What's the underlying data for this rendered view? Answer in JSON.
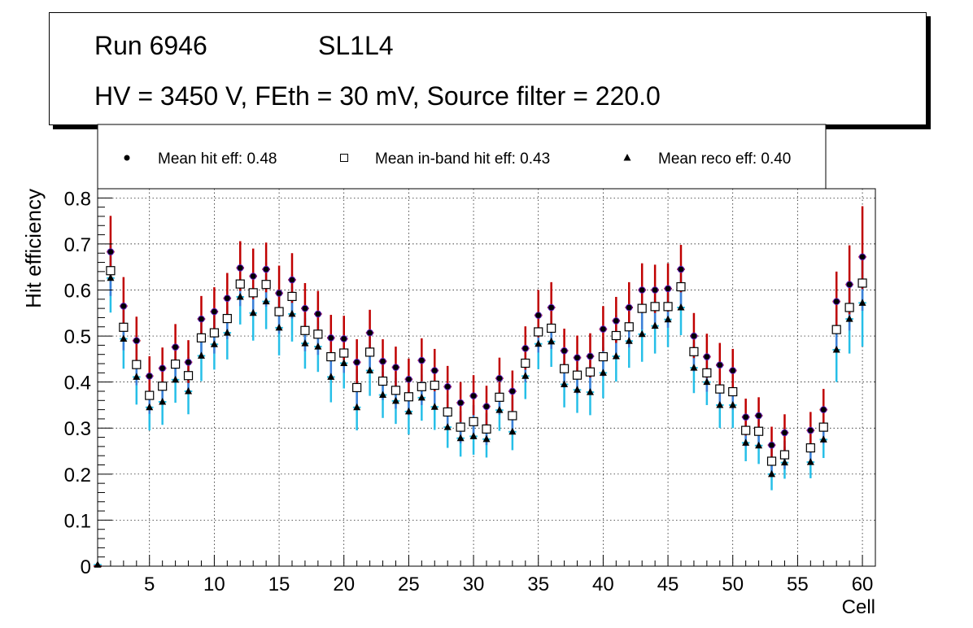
{
  "header": {
    "run": "Run 6946",
    "layer": "SL1L4",
    "settings": "HV = 3450 V, FEth = 30 mV, Source filter = 220.0"
  },
  "colors": {
    "hit_err": "#c00000",
    "hit_marker": "#000000",
    "hit_edge": "#5b1ab3",
    "inband_err": "#3b7fd8",
    "inband_marker": "#ffffff",
    "inband_edge": "#000000",
    "reco_err": "#26bfe8",
    "reco_marker": "#000000",
    "grid": "#000000"
  },
  "chart_data": {
    "type": "scatter",
    "xlabel": "Cell",
    "ylabel": "Hit efficiency",
    "xlim": [
      1,
      61
    ],
    "ylim": [
      0,
      0.82
    ],
    "grid": true,
    "x_ticks": [
      5,
      10,
      15,
      20,
      25,
      30,
      35,
      40,
      45,
      50,
      55,
      60
    ],
    "y_ticks": [
      0,
      0.1,
      0.2,
      0.3,
      0.4,
      0.5,
      0.6,
      0.7,
      0.8
    ],
    "legend": {
      "position": "top",
      "entries": [
        "Mean hit  eff: 0.48",
        "Mean in-band hit eff: 0.43",
        "Mean reco eff: 0.40"
      ]
    },
    "x": [
      1,
      2,
      3,
      4,
      5,
      6,
      7,
      8,
      9,
      10,
      11,
      12,
      13,
      14,
      15,
      16,
      17,
      18,
      19,
      20,
      21,
      22,
      23,
      24,
      25,
      26,
      27,
      28,
      29,
      30,
      31,
      32,
      33,
      34,
      35,
      36,
      37,
      38,
      39,
      40,
      41,
      42,
      43,
      44,
      45,
      46,
      47,
      48,
      49,
      50,
      51,
      52,
      53,
      54,
      55,
      56,
      57,
      58,
      59,
      60
    ],
    "series": [
      {
        "name": "Mean hit  eff: 0.48",
        "marker": "circle",
        "values": [
          0.0,
          0.683,
          0.565,
          0.49,
          0.413,
          0.43,
          0.476,
          0.443,
          0.537,
          0.553,
          0.582,
          0.648,
          0.63,
          0.645,
          0.593,
          0.622,
          0.56,
          0.548,
          0.496,
          0.494,
          0.443,
          0.507,
          0.445,
          0.432,
          0.406,
          0.447,
          0.425,
          0.39,
          0.355,
          0.37,
          0.347,
          0.408,
          0.38,
          0.473,
          0.545,
          0.562,
          0.468,
          0.453,
          0.456,
          0.515,
          0.533,
          0.562,
          0.6,
          0.6,
          0.603,
          0.645,
          0.5,
          0.455,
          0.437,
          0.425,
          0.324,
          0.327,
          0.263,
          0.29,
          null,
          0.295,
          0.34,
          0.575,
          0.612,
          0.672
        ],
        "err_low": [
          0.0,
          0.055,
          0.055,
          0.05,
          0.045,
          0.045,
          0.045,
          0.045,
          0.048,
          0.048,
          0.05,
          0.05,
          0.05,
          0.05,
          0.05,
          0.05,
          0.048,
          0.048,
          0.046,
          0.046,
          0.046,
          0.046,
          0.046,
          0.046,
          0.045,
          0.046,
          0.045,
          0.045,
          0.042,
          0.042,
          0.042,
          0.044,
          0.043,
          0.046,
          0.048,
          0.048,
          0.046,
          0.046,
          0.046,
          0.048,
          0.048,
          0.048,
          0.05,
          0.05,
          0.05,
          0.05,
          0.048,
          0.046,
          0.045,
          0.045,
          0.04,
          0.04,
          0.036,
          0.038,
          null,
          0.038,
          0.042,
          0.06,
          0.065,
          0.07
        ],
        "err_high": [
          0.0,
          0.078,
          0.063,
          0.052,
          0.043,
          0.045,
          0.05,
          0.048,
          0.05,
          0.053,
          0.055,
          0.058,
          0.06,
          0.058,
          0.06,
          0.058,
          0.055,
          0.05,
          0.05,
          0.05,
          0.05,
          0.05,
          0.048,
          0.045,
          0.045,
          0.048,
          0.047,
          0.045,
          0.045,
          0.045,
          0.045,
          0.045,
          0.045,
          0.048,
          0.055,
          0.055,
          0.048,
          0.048,
          0.05,
          0.05,
          0.052,
          0.055,
          0.058,
          0.055,
          0.055,
          0.053,
          0.05,
          0.05,
          0.048,
          0.047,
          0.04,
          0.04,
          0.04,
          0.04,
          null,
          0.04,
          0.045,
          0.065,
          0.085,
          0.11
        ]
      },
      {
        "name": "Mean in-band hit eff: 0.43",
        "marker": "open-square",
        "values": [
          0.0,
          0.642,
          0.519,
          0.438,
          0.371,
          0.391,
          0.439,
          0.414,
          0.496,
          0.507,
          0.538,
          0.613,
          0.594,
          0.612,
          0.553,
          0.586,
          0.512,
          0.504,
          0.455,
          0.463,
          0.388,
          0.465,
          0.402,
          0.382,
          0.368,
          0.39,
          0.393,
          0.335,
          0.302,
          0.314,
          0.298,
          0.367,
          0.327,
          0.441,
          0.509,
          0.517,
          0.429,
          0.415,
          0.422,
          0.455,
          0.501,
          0.52,
          0.56,
          0.564,
          0.564,
          0.607,
          0.466,
          0.42,
          0.385,
          0.379,
          0.295,
          0.293,
          0.228,
          0.242,
          null,
          0.257,
          0.302,
          0.514,
          0.562,
          0.615
        ],
        "err_low": [
          0.0,
          0.055,
          0.05,
          0.045,
          0.04,
          0.04,
          0.04,
          0.04,
          0.045,
          0.045,
          0.045,
          0.048,
          0.048,
          0.048,
          0.048,
          0.048,
          0.045,
          0.045,
          0.043,
          0.043,
          0.04,
          0.043,
          0.041,
          0.04,
          0.04,
          0.04,
          0.04,
          0.038,
          0.035,
          0.036,
          0.035,
          0.038,
          0.036,
          0.041,
          0.045,
          0.045,
          0.041,
          0.041,
          0.041,
          0.043,
          0.045,
          0.045,
          0.046,
          0.046,
          0.046,
          0.048,
          0.043,
          0.041,
          0.04,
          0.039,
          0.035,
          0.035,
          0.03,
          0.031,
          null,
          0.032,
          0.036,
          0.05,
          0.05,
          0.06
        ],
        "err_high": [
          0.0,
          0.055,
          0.05,
          0.045,
          0.04,
          0.04,
          0.04,
          0.04,
          0.045,
          0.045,
          0.045,
          0.048,
          0.048,
          0.048,
          0.048,
          0.048,
          0.045,
          0.045,
          0.043,
          0.043,
          0.04,
          0.043,
          0.041,
          0.04,
          0.04,
          0.04,
          0.04,
          0.038,
          0.035,
          0.036,
          0.035,
          0.038,
          0.036,
          0.041,
          0.045,
          0.045,
          0.041,
          0.041,
          0.041,
          0.043,
          0.045,
          0.045,
          0.046,
          0.046,
          0.046,
          0.048,
          0.043,
          0.041,
          0.04,
          0.039,
          0.035,
          0.035,
          0.03,
          0.031,
          null,
          0.032,
          0.036,
          0.05,
          0.05,
          0.06
        ]
      },
      {
        "name": "Mean reco eff: 0.40",
        "marker": "triangle",
        "values": [
          0.003,
          0.626,
          0.494,
          0.411,
          0.345,
          0.357,
          0.405,
          0.38,
          0.457,
          0.482,
          0.507,
          0.585,
          0.55,
          0.575,
          0.518,
          0.548,
          0.484,
          0.477,
          0.411,
          0.441,
          0.345,
          0.425,
          0.372,
          0.359,
          0.336,
          0.366,
          0.346,
          0.302,
          0.278,
          0.282,
          0.276,
          0.339,
          0.292,
          0.413,
          0.483,
          0.488,
          0.395,
          0.383,
          0.378,
          0.42,
          0.456,
          0.489,
          0.504,
          0.522,
          0.536,
          0.562,
          0.431,
          0.4,
          0.35,
          0.35,
          0.268,
          0.262,
          0.2,
          0.225,
          null,
          0.226,
          0.275,
          0.47,
          0.537,
          0.572
        ],
        "err_low": [
          0.0,
          0.075,
          0.065,
          0.06,
          0.05,
          0.05,
          0.05,
          0.05,
          0.055,
          0.055,
          0.058,
          0.06,
          0.06,
          0.06,
          0.06,
          0.06,
          0.055,
          0.055,
          0.055,
          0.055,
          0.05,
          0.055,
          0.05,
          0.05,
          0.05,
          0.05,
          0.05,
          0.045,
          0.04,
          0.04,
          0.04,
          0.045,
          0.04,
          0.05,
          0.055,
          0.055,
          0.05,
          0.05,
          0.05,
          0.055,
          0.055,
          0.058,
          0.06,
          0.06,
          0.06,
          0.06,
          0.055,
          0.05,
          0.05,
          0.05,
          0.04,
          0.04,
          0.035,
          0.035,
          null,
          0.035,
          0.04,
          0.07,
          0.075,
          0.095
        ],
        "err_high": [
          0.0,
          0.075,
          0.065,
          0.06,
          0.05,
          0.05,
          0.05,
          0.05,
          0.055,
          0.055,
          0.058,
          0.06,
          0.06,
          0.06,
          0.06,
          0.06,
          0.055,
          0.055,
          0.055,
          0.055,
          0.05,
          0.055,
          0.05,
          0.05,
          0.05,
          0.05,
          0.05,
          0.045,
          0.04,
          0.04,
          0.04,
          0.045,
          0.04,
          0.05,
          0.055,
          0.055,
          0.05,
          0.05,
          0.05,
          0.055,
          0.055,
          0.058,
          0.06,
          0.06,
          0.06,
          0.06,
          0.055,
          0.05,
          0.05,
          0.05,
          0.04,
          0.04,
          0.035,
          0.035,
          null,
          0.035,
          0.04,
          0.07,
          0.075,
          0.095
        ]
      }
    ]
  }
}
